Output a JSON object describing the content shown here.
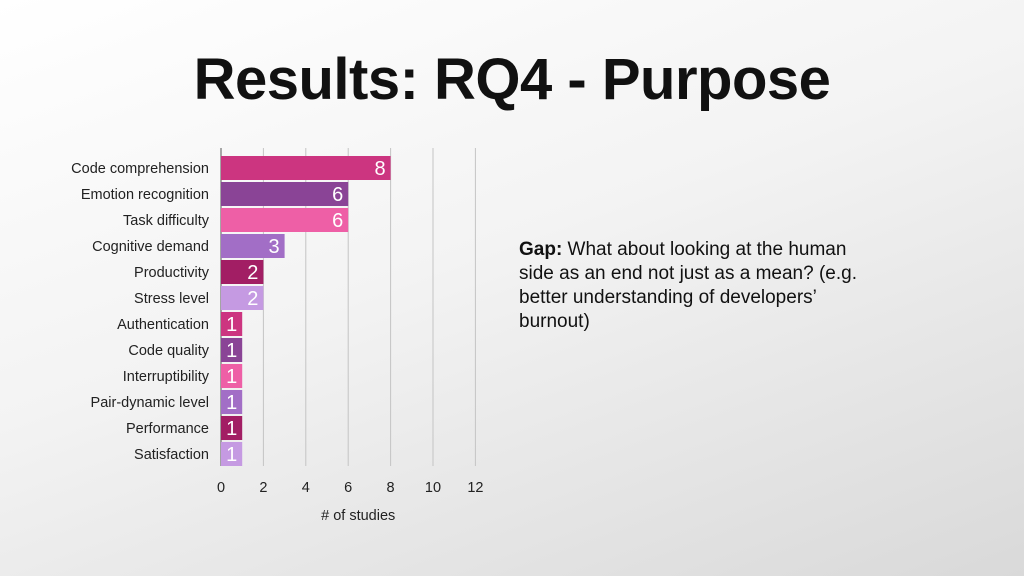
{
  "slide": {
    "title": "Results: RQ4 - Purpose"
  },
  "note": {
    "bold": "Gap:",
    "text": " What about looking at the human side as an end not just as a mean? (e.g. better understanding of developers’ burnout)"
  },
  "chart_data": {
    "type": "bar",
    "orientation": "horizontal",
    "categories": [
      "Code comprehension",
      "Emotion recognition",
      "Task difficulty",
      "Cognitive demand",
      "Productivity",
      "Stress level",
      "Authentication",
      "Code quality",
      "Interruptibility",
      "Pair-dynamic level",
      "Performance",
      "Satisfaction"
    ],
    "values": [
      8,
      6,
      6,
      3,
      2,
      2,
      1,
      1,
      1,
      1,
      1,
      1
    ],
    "bar_colors": [
      "#cc3580",
      "#8a4496",
      "#ee5fa6",
      "#a26ec6",
      "#a21e64",
      "#c59ae2",
      "#cc3580",
      "#8a4496",
      "#ee5fa6",
      "#a26ec6",
      "#a21e64",
      "#c59ae2"
    ],
    "xlabel": "# of studies",
    "xlim": [
      0,
      12
    ],
    "xticks": [
      "0",
      "2",
      "4",
      "6",
      "8",
      "10",
      "12"
    ],
    "grid": true,
    "data_labels": true
  }
}
